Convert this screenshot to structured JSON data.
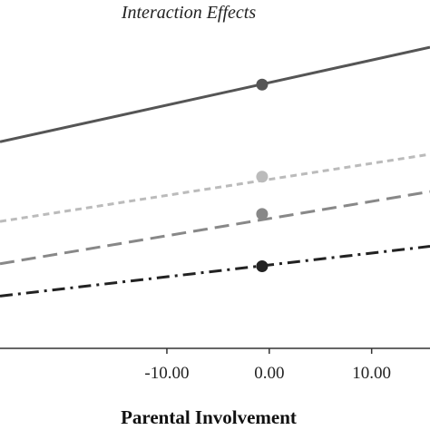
{
  "chart_data": {
    "type": "line",
    "title": "Interaction Effects",
    "xlabel": "Parental Involvement",
    "ylabel": "",
    "xlim": [
      -26.3,
      15.7
    ],
    "ylim": [
      0,
      14
    ],
    "x_ticks": [
      -10,
      0,
      10
    ],
    "x_tick_labels": [
      "-10.00",
      "0.00",
      "10.00"
    ],
    "grid": false,
    "series": [
      {
        "style": "solid",
        "color": "#555555",
        "marker_x": -0.7,
        "marker_y": 10.6,
        "points": [
          [
            -26.3,
            8.3
          ],
          [
            15.7,
            12.1
          ]
        ]
      },
      {
        "style": "dotted",
        "color": "#bbbbbb",
        "marker_x": -0.7,
        "marker_y": 6.9,
        "points": [
          [
            -26.3,
            5.1
          ],
          [
            15.7,
            7.8
          ]
        ]
      },
      {
        "style": "dashed",
        "color": "#888888",
        "marker_x": -0.7,
        "marker_y": 5.4,
        "points": [
          [
            -26.3,
            3.4
          ],
          [
            15.7,
            6.3
          ]
        ]
      },
      {
        "style": "dash-dot",
        "color": "#222222",
        "marker_x": -0.7,
        "marker_y": 3.3,
        "points": [
          [
            -26.3,
            2.1
          ],
          [
            15.7,
            4.1
          ]
        ]
      }
    ]
  }
}
